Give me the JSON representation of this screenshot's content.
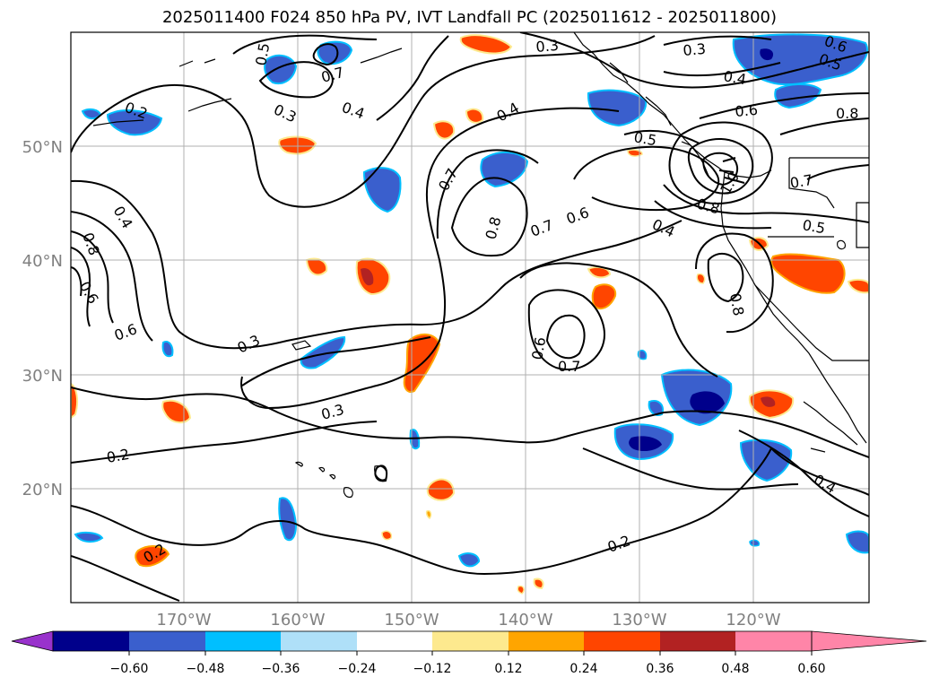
{
  "title": "2025011400 F024 850 hPa PV, IVT Landfall PC (2025011612 - 2025011800)",
  "map": {
    "lat_ticks": [
      "50°N",
      "40°N",
      "30°N",
      "20°N"
    ],
    "lon_ticks": [
      "170°W",
      "160°W",
      "150°W",
      "140°W",
      "130°W",
      "120°W"
    ],
    "contour_labels": [
      {
        "text": "0.3"
      },
      {
        "text": "0.3"
      },
      {
        "text": "0.6"
      },
      {
        "text": "0.5"
      },
      {
        "text": "0.4"
      },
      {
        "text": "0.4"
      },
      {
        "text": "0.8"
      },
      {
        "text": "0.6"
      },
      {
        "text": "0.2"
      },
      {
        "text": "0.3"
      },
      {
        "text": "0.4"
      },
      {
        "text": "0.5"
      },
      {
        "text": "0.7"
      },
      {
        "text": "0.7"
      },
      {
        "text": "0.8"
      },
      {
        "text": "1.0"
      },
      {
        "text": "0.8"
      },
      {
        "text": "0.5"
      },
      {
        "text": "0.4"
      },
      {
        "text": "0.7"
      },
      {
        "text": "0.7"
      },
      {
        "text": "0.5"
      },
      {
        "text": "0.6"
      },
      {
        "text": "0.8"
      },
      {
        "text": "0.6"
      },
      {
        "text": "0.4"
      },
      {
        "text": "0.6"
      },
      {
        "text": "0.8"
      },
      {
        "text": "0.3"
      },
      {
        "text": "0.6"
      },
      {
        "text": "0.7"
      },
      {
        "text": "0.3"
      },
      {
        "text": "0.2"
      },
      {
        "text": "0.2"
      },
      {
        "text": "0.4"
      },
      {
        "text": "0.2"
      }
    ]
  },
  "colorbar": {
    "tick_labels": [
      "−0.60",
      "−0.48",
      "−0.36",
      "−0.24",
      "−0.12",
      "0.12",
      "0.24",
      "0.36",
      "0.48",
      "0.60"
    ],
    "colors": [
      "#9932cc",
      "#00008b",
      "#3a5fcd",
      "#00bfff",
      "#afe0f8",
      "#ffffff",
      "#fde98e",
      "#ffa500",
      "#ff4500",
      "#b22222",
      "#ff85a8"
    ]
  },
  "palette": {
    "neg_strong": "#00008b",
    "neg_mid": "#3a5fcd",
    "neg_light": "#00bfff",
    "pos_light": "#fde98e",
    "pos_mid": "#ffa500",
    "pos_strong": "#ff4500",
    "pos_dark": "#b22222"
  }
}
